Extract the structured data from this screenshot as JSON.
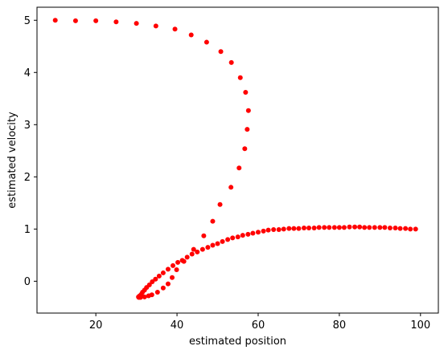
{
  "chart_data": {
    "type": "scatter",
    "title": "",
    "xlabel": "estimated position",
    "ylabel": "estimated velocity",
    "xlim": [
      5.5,
      104.4
    ],
    "ylim": [
      -0.61,
      5.25
    ],
    "grid": false,
    "xticks": [
      "20",
      "40",
      "60",
      "80",
      "100"
    ],
    "yticks": [
      "0",
      "1",
      "2",
      "3",
      "4",
      "5"
    ],
    "colors": {
      "points": "#ff0000"
    },
    "series": [
      {
        "values": [
          [
            10.0,
            5.0
          ],
          [
            15.0,
            4.99
          ],
          [
            20.0,
            4.99
          ],
          [
            25.0,
            4.97
          ],
          [
            30.0,
            4.94
          ],
          [
            34.8,
            4.89
          ],
          [
            39.5,
            4.83
          ],
          [
            43.5,
            4.72
          ],
          [
            47.3,
            4.58
          ],
          [
            50.8,
            4.4
          ],
          [
            53.4,
            4.19
          ],
          [
            55.6,
            3.9
          ],
          [
            56.9,
            3.62
          ],
          [
            57.6,
            3.27
          ],
          [
            57.3,
            2.91
          ],
          [
            56.7,
            2.54
          ],
          [
            55.3,
            2.17
          ],
          [
            53.3,
            1.8
          ],
          [
            50.6,
            1.47
          ],
          [
            48.8,
            1.15
          ],
          [
            46.6,
            0.87
          ],
          [
            44.1,
            0.61
          ],
          [
            41.7,
            0.38
          ],
          [
            39.9,
            0.22
          ],
          [
            38.8,
            0.07
          ],
          [
            37.8,
            -0.05
          ],
          [
            36.6,
            -0.13
          ],
          [
            35.2,
            -0.21
          ],
          [
            33.8,
            -0.26
          ],
          [
            33.0,
            -0.28
          ],
          [
            32.0,
            -0.3
          ],
          [
            31.0,
            -0.31
          ],
          [
            30.6,
            -0.31
          ],
          [
            30.5,
            -0.3
          ],
          [
            30.8,
            -0.28
          ],
          [
            31.2,
            -0.25
          ],
          [
            31.5,
            -0.21
          ],
          [
            32.0,
            -0.17
          ],
          [
            32.5,
            -0.12
          ],
          [
            33.2,
            -0.07
          ],
          [
            33.9,
            -0.01
          ],
          [
            34.7,
            0.04
          ],
          [
            35.6,
            0.1
          ],
          [
            36.6,
            0.16
          ],
          [
            37.8,
            0.23
          ],
          [
            39.0,
            0.3
          ],
          [
            40.2,
            0.36
          ],
          [
            41.3,
            0.4
          ],
          [
            42.5,
            0.46
          ],
          [
            43.7,
            0.52
          ],
          [
            45.0,
            0.56
          ],
          [
            46.3,
            0.61
          ],
          [
            47.6,
            0.65
          ],
          [
            48.8,
            0.69
          ],
          [
            50.0,
            0.72
          ],
          [
            51.2,
            0.76
          ],
          [
            52.5,
            0.8
          ],
          [
            53.7,
            0.83
          ],
          [
            55.0,
            0.85
          ],
          [
            56.2,
            0.88
          ],
          [
            57.5,
            0.9
          ],
          [
            58.7,
            0.92
          ],
          [
            60.0,
            0.94
          ],
          [
            61.3,
            0.96
          ],
          [
            62.5,
            0.98
          ],
          [
            63.8,
            0.99
          ],
          [
            65.1,
            0.99
          ],
          [
            66.3,
            1.0
          ],
          [
            67.6,
            1.01
          ],
          [
            68.8,
            1.01
          ],
          [
            70.0,
            1.01
          ],
          [
            71.3,
            1.02
          ],
          [
            72.5,
            1.02
          ],
          [
            73.8,
            1.02
          ],
          [
            75.0,
            1.03
          ],
          [
            76.3,
            1.03
          ],
          [
            77.5,
            1.03
          ],
          [
            78.8,
            1.03
          ],
          [
            80.0,
            1.03
          ],
          [
            81.2,
            1.03
          ],
          [
            82.5,
            1.04
          ],
          [
            83.8,
            1.04
          ],
          [
            85.0,
            1.04
          ],
          [
            86.2,
            1.03
          ],
          [
            87.4,
            1.03
          ],
          [
            88.7,
            1.03
          ],
          [
            90.0,
            1.03
          ],
          [
            91.2,
            1.03
          ],
          [
            92.5,
            1.02
          ],
          [
            93.8,
            1.02
          ],
          [
            95.0,
            1.01
          ],
          [
            96.3,
            1.01
          ],
          [
            97.5,
            1.0
          ],
          [
            98.8,
            1.0
          ]
        ]
      }
    ]
  }
}
